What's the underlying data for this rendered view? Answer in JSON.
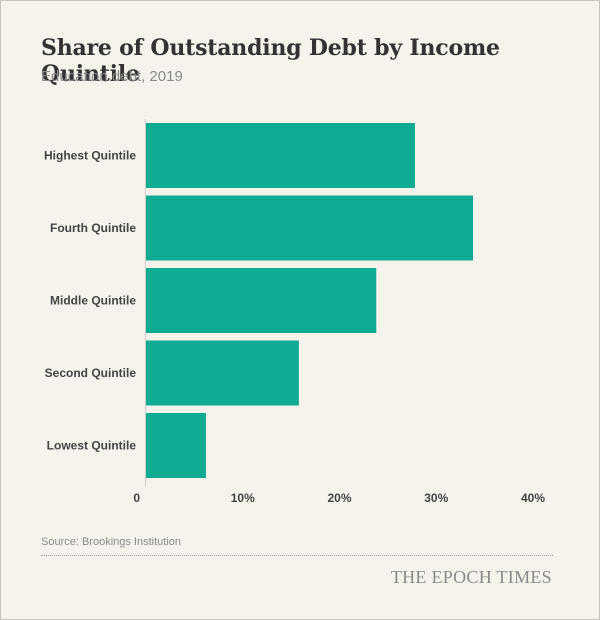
{
  "header": {
    "title": "Share of Outstanding Debt by Income Quintile",
    "subtitle": "Education debt, 2019"
  },
  "chart_data": {
    "type": "bar",
    "orientation": "horizontal",
    "categories": [
      "Highest Quintile",
      "Fourth Quintile",
      "Middle Quintile",
      "Second Quintile",
      "Lowest Quintile"
    ],
    "values": [
      27.8,
      33.8,
      23.8,
      15.8,
      6.2
    ],
    "unit": "%",
    "xlim": [
      0,
      40
    ],
    "xticks": [
      0,
      10,
      20,
      30,
      40
    ],
    "xtick_labels": [
      "0",
      "10%",
      "20%",
      "30%",
      "40%"
    ],
    "bar_color": "#0fab93",
    "grid": false,
    "legend": "none"
  },
  "footer": {
    "source": "Source: Brookings Institution",
    "brand": "THE EPOCH TIMES"
  }
}
